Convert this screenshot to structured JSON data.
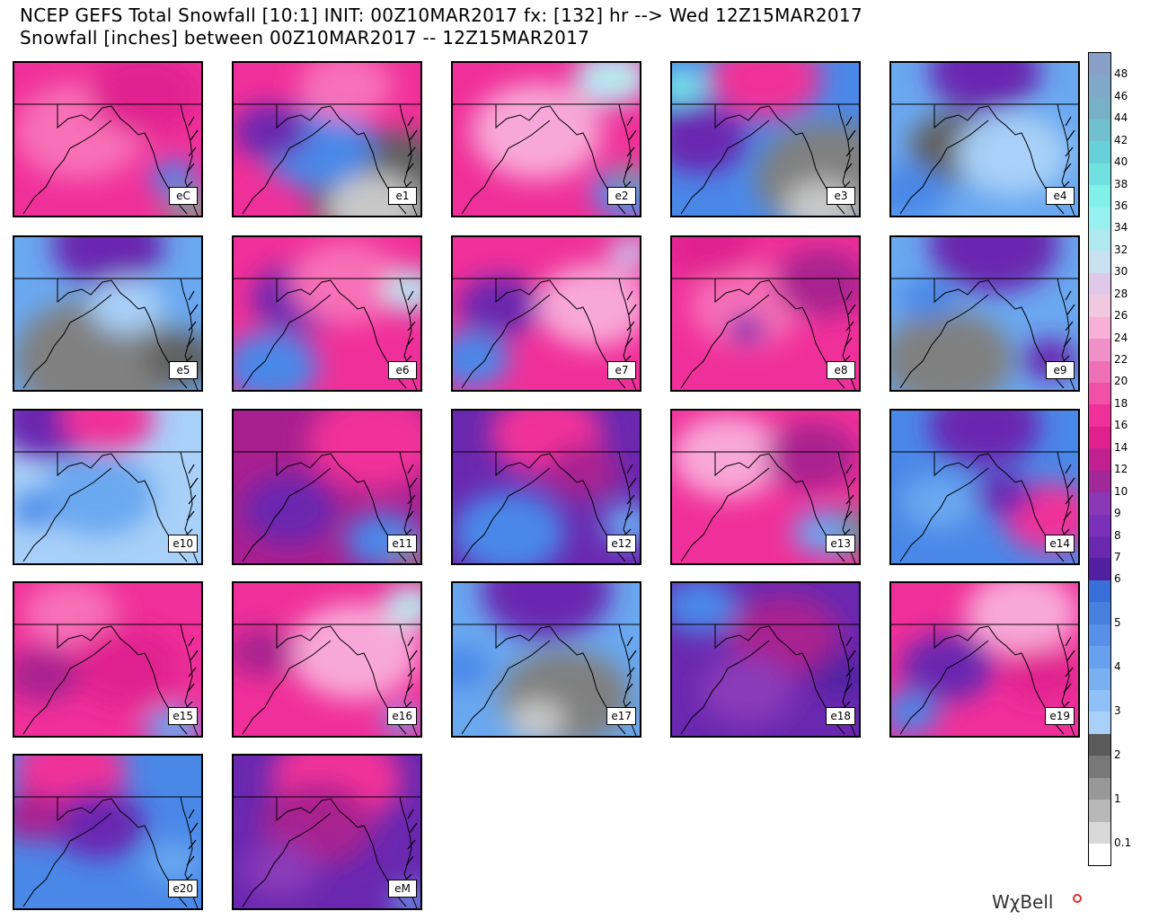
{
  "title_line1": "NCEP GEFS Total Snowfall [10:1] INIT: 00Z10MAR2017 fx: [132] hr --> Wed 12Z15MAR2017",
  "title_line2": "Snowfall [inches] between 00Z10MAR2017 -- 12Z15MAR2017",
  "brand": "WχBell",
  "panels": [
    {
      "label": "eC",
      "base": "#f0309a",
      "blobs": [
        [
          "#f870b8",
          0.35,
          0.45,
          0.35
        ],
        [
          "#e02090",
          0.7,
          0.2,
          0.3
        ],
        [
          "#909090",
          0.95,
          0.95,
          0.15
        ],
        [
          "#4a88e8",
          0.85,
          0.75,
          0.12
        ]
      ]
    },
    {
      "label": "e1",
      "base": "#f0309a",
      "blobs": [
        [
          "#606060",
          0.85,
          0.85,
          0.45
        ],
        [
          "#c8c8c8",
          0.75,
          0.95,
          0.25
        ],
        [
          "#4a88e8",
          0.45,
          0.55,
          0.3
        ],
        [
          "#6a28b0",
          0.2,
          0.45,
          0.2
        ],
        [
          "#f870b8",
          0.6,
          0.15,
          0.25
        ]
      ]
    },
    {
      "label": "e2",
      "base": "#f0309a",
      "blobs": [
        [
          "#f8a8d8",
          0.45,
          0.45,
          0.35
        ],
        [
          "#b8e8f0",
          0.85,
          0.1,
          0.2
        ],
        [
          "#5090e8",
          0.95,
          0.85,
          0.2
        ],
        [
          "#909090",
          0.95,
          0.75,
          0.1
        ]
      ]
    },
    {
      "label": "e3",
      "base": "#4a88e8",
      "blobs": [
        [
          "#808080",
          0.85,
          0.75,
          0.4
        ],
        [
          "#c8c8c8",
          0.8,
          0.95,
          0.2
        ],
        [
          "#6a28b0",
          0.15,
          0.5,
          0.25
        ],
        [
          "#f0309a",
          0.5,
          0.1,
          0.3
        ],
        [
          "#80f0e8",
          0.05,
          0.15,
          0.12
        ]
      ]
    },
    {
      "label": "e4",
      "base": "#6aa8f0",
      "blobs": [
        [
          "#606060",
          0.35,
          0.55,
          0.25
        ],
        [
          "#a8d0f8",
          0.65,
          0.6,
          0.3
        ],
        [
          "#6a28b0",
          0.5,
          0.05,
          0.3
        ],
        [
          "#4a88e8",
          0.1,
          0.85,
          0.2
        ]
      ]
    },
    {
      "label": "e5",
      "base": "#6aa8f0",
      "blobs": [
        [
          "#808080",
          0.45,
          0.8,
          0.45
        ],
        [
          "#606060",
          0.9,
          0.8,
          0.2
        ],
        [
          "#6a28b0",
          0.5,
          0.05,
          0.3
        ],
        [
          "#a8d0f8",
          0.6,
          0.45,
          0.2
        ]
      ]
    },
    {
      "label": "e6",
      "base": "#f0309a",
      "blobs": [
        [
          "#6a28b0",
          0.35,
          0.4,
          0.25
        ],
        [
          "#4a88e8",
          0.2,
          0.85,
          0.25
        ],
        [
          "#f870b8",
          0.6,
          0.3,
          0.3
        ],
        [
          "#b8e8f0",
          0.95,
          0.35,
          0.15
        ]
      ]
    },
    {
      "label": "e7",
      "base": "#f0309a",
      "blobs": [
        [
          "#6a28b0",
          0.25,
          0.45,
          0.22
        ],
        [
          "#4a88e8",
          0.1,
          0.8,
          0.2
        ],
        [
          "#f8a8d8",
          0.75,
          0.45,
          0.3
        ],
        [
          "#c8c0e8",
          0.95,
          0.1,
          0.12
        ]
      ]
    },
    {
      "label": "e8",
      "base": "#f0309a",
      "blobs": [
        [
          "#f870b8",
          0.4,
          0.45,
          0.3
        ],
        [
          "#a82090",
          0.8,
          0.3,
          0.25
        ],
        [
          "#6a28b0",
          0.4,
          0.6,
          0.1
        ],
        [
          "#e02090",
          0.2,
          0.05,
          0.25
        ]
      ]
    },
    {
      "label": "e9",
      "base": "#6aa8f0",
      "blobs": [
        [
          "#808080",
          0.3,
          0.8,
          0.35
        ],
        [
          "#6a28b0",
          0.55,
          0.05,
          0.35
        ],
        [
          "#6a28b0",
          0.85,
          0.8,
          0.15
        ],
        [
          "#4a88e8",
          0.2,
          0.4,
          0.15
        ]
      ]
    },
    {
      "label": "e10",
      "base": "#a8d0f8",
      "blobs": [
        [
          "#6aa8f0",
          0.45,
          0.55,
          0.3
        ],
        [
          "#6a28b0",
          0.2,
          0.05,
          0.3
        ],
        [
          "#f0309a",
          0.5,
          0.05,
          0.25
        ],
        [
          "#4a88e8",
          0.1,
          0.65,
          0.12
        ]
      ]
    },
    {
      "label": "e11",
      "base": "#a82090",
      "blobs": [
        [
          "#f0309a",
          0.75,
          0.2,
          0.35
        ],
        [
          "#6a28b0",
          0.3,
          0.65,
          0.25
        ],
        [
          "#4a88e8",
          0.8,
          0.85,
          0.2
        ],
        [
          "#909090",
          0.95,
          0.95,
          0.1
        ]
      ]
    },
    {
      "label": "e12",
      "base": "#6a28b0",
      "blobs": [
        [
          "#f0309a",
          0.5,
          0.15,
          0.3
        ],
        [
          "#4a88e8",
          0.3,
          0.8,
          0.3
        ],
        [
          "#6aa8f0",
          0.95,
          0.75,
          0.15
        ],
        [
          "#a82090",
          0.7,
          0.4,
          0.2
        ]
      ]
    },
    {
      "label": "e13",
      "base": "#f0309a",
      "blobs": [
        [
          "#f8a8d8",
          0.3,
          0.3,
          0.3
        ],
        [
          "#a82090",
          0.75,
          0.3,
          0.25
        ],
        [
          "#808080",
          0.95,
          0.8,
          0.18
        ],
        [
          "#6aa8f0",
          0.8,
          0.8,
          0.15
        ]
      ]
    },
    {
      "label": "e14",
      "base": "#4a88e8",
      "blobs": [
        [
          "#6a28b0",
          0.5,
          0.1,
          0.3
        ],
        [
          "#f0309a",
          0.85,
          0.7,
          0.25
        ],
        [
          "#6aa8f0",
          0.25,
          0.6,
          0.2
        ],
        [
          "#6a28b0",
          0.6,
          0.55,
          0.15
        ]
      ]
    },
    {
      "label": "e15",
      "base": "#f0309a",
      "blobs": [
        [
          "#f870b8",
          0.3,
          0.2,
          0.25
        ],
        [
          "#e02090",
          0.6,
          0.55,
          0.3
        ],
        [
          "#6aa8f0",
          0.85,
          0.95,
          0.15
        ],
        [
          "#a82090",
          0.15,
          0.6,
          0.2
        ]
      ]
    },
    {
      "label": "e16",
      "base": "#f0309a",
      "blobs": [
        [
          "#f8a8d8",
          0.65,
          0.45,
          0.35
        ],
        [
          "#b8e8f0",
          0.95,
          0.15,
          0.15
        ],
        [
          "#a82090",
          0.15,
          0.45,
          0.18
        ],
        [
          "#6aa8f0",
          0.9,
          0.9,
          0.1
        ]
      ]
    },
    {
      "label": "e17",
      "base": "#6aa8f0",
      "blobs": [
        [
          "#808080",
          0.6,
          0.75,
          0.35
        ],
        [
          "#c8c8c8",
          0.45,
          0.9,
          0.15
        ],
        [
          "#6a28b0",
          0.5,
          0.05,
          0.35
        ],
        [
          "#4a88e8",
          0.05,
          0.55,
          0.15
        ]
      ]
    },
    {
      "label": "e18",
      "base": "#6a28b0",
      "blobs": [
        [
          "#a82090",
          0.6,
          0.35,
          0.3
        ],
        [
          "#4a88e8",
          0.15,
          0.15,
          0.2
        ],
        [
          "#8a3ab8",
          0.4,
          0.7,
          0.25
        ],
        [
          "#5020a0",
          0.9,
          0.6,
          0.15
        ]
      ]
    },
    {
      "label": "e19",
      "base": "#f0309a",
      "blobs": [
        [
          "#f8a8d8",
          0.7,
          0.2,
          0.3
        ],
        [
          "#6a28b0",
          0.3,
          0.55,
          0.25
        ],
        [
          "#4a88e8",
          0.1,
          0.85,
          0.15
        ],
        [
          "#e02090",
          0.8,
          0.6,
          0.2
        ]
      ]
    },
    {
      "label": "e20",
      "base": "#4a88e8",
      "blobs": [
        [
          "#f0309a",
          0.3,
          0.1,
          0.3
        ],
        [
          "#6a28b0",
          0.45,
          0.45,
          0.25
        ],
        [
          "#a82090",
          0.1,
          0.4,
          0.18
        ],
        [
          "#6aa8f0",
          0.85,
          0.7,
          0.15
        ]
      ]
    },
    {
      "label": "eM",
      "base": "#6a28b0",
      "blobs": [
        [
          "#f0309a",
          0.55,
          0.15,
          0.35
        ],
        [
          "#a82090",
          0.45,
          0.45,
          0.3
        ],
        [
          "#8a3ab8",
          0.25,
          0.75,
          0.2
        ],
        [
          "#6aa8f0",
          0.95,
          0.95,
          0.1
        ]
      ]
    }
  ],
  "colorbar": {
    "colors": [
      "#ffffff",
      "#d8d8d8",
      "#b8b8b8",
      "#989898",
      "#787878",
      "#5a5a5a",
      "#a8d0f8",
      "#90c0f8",
      "#78b0f0",
      "#68a0f0",
      "#5890e8",
      "#4880e0",
      "#3870d8",
      "#5020a0",
      "#6a28b0",
      "#7a30b8",
      "#8a38b8",
      "#a02898",
      "#c02090",
      "#e0208c",
      "#f0309a",
      "#f050a8",
      "#f070b8",
      "#f090c8",
      "#f8b0d8",
      "#f0c8e0",
      "#e0c8e8",
      "#c8e0f0",
      "#b0e8f0",
      "#98f0f0",
      "#80f0e8",
      "#70e0e0",
      "#68d0d8",
      "#70c0d0",
      "#78b0c8",
      "#80a8c8",
      "#88a0c8",
      "#9098d0",
      "#9890d8",
      "#a088e0",
      "#a880e8",
      "#b078f0",
      "#b870f0",
      "#c068f8"
    ],
    "ticks": [
      {
        "v": "0.1",
        "i": 1
      },
      {
        "v": "1",
        "i": 3
      },
      {
        "v": "2",
        "i": 5
      },
      {
        "v": "3",
        "i": 7
      },
      {
        "v": "4",
        "i": 9
      },
      {
        "v": "5",
        "i": 11
      },
      {
        "v": "6",
        "i": 13
      },
      {
        "v": "7",
        "i": 14
      },
      {
        "v": "8",
        "i": 15
      },
      {
        "v": "9",
        "i": 16
      },
      {
        "v": "10",
        "i": 17
      },
      {
        "v": "12",
        "i": 18
      },
      {
        "v": "14",
        "i": 19
      },
      {
        "v": "16",
        "i": 20
      },
      {
        "v": "18",
        "i": 21
      },
      {
        "v": "20",
        "i": 22
      },
      {
        "v": "22",
        "i": 23
      },
      {
        "v": "24",
        "i": 24
      },
      {
        "v": "26",
        "i": 25
      },
      {
        "v": "28",
        "i": 26
      },
      {
        "v": "30",
        "i": 27
      },
      {
        "v": "32",
        "i": 28
      },
      {
        "v": "34",
        "i": 29
      },
      {
        "v": "36",
        "i": 30
      },
      {
        "v": "38",
        "i": 31
      },
      {
        "v": "40",
        "i": 32
      },
      {
        "v": "42",
        "i": 33
      },
      {
        "v": "44",
        "i": 34
      },
      {
        "v": "46",
        "i": 35
      },
      {
        "v": "48",
        "i": 36
      }
    ]
  }
}
